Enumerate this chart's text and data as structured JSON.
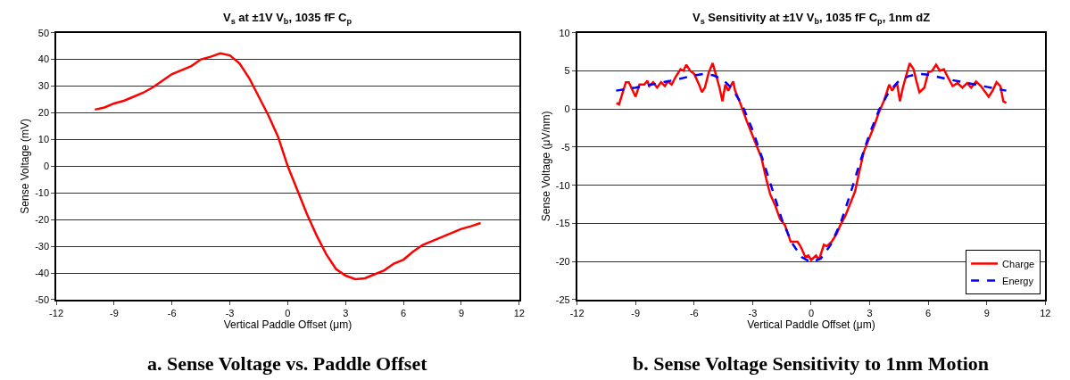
{
  "chart_data": [
    {
      "type": "line",
      "title": "V$_{s}$ at ±1V V$_{b}$, 1035 fF C$_{p}$",
      "xlabel": "Vertical Paddle Offset (μm)",
      "ylabel": "Sense Voltage (mV)",
      "annotations": [
        "a. Sense Voltage vs. Paddle Offset"
      ],
      "xlim": [
        -12,
        12
      ],
      "xticks": [
        -12,
        -9,
        -6,
        -3,
        0,
        3,
        6,
        9,
        12
      ],
      "ylim": [
        -50,
        50
      ],
      "yticks": [
        -50,
        -40,
        -30,
        -20,
        -10,
        0,
        10,
        20,
        30,
        40,
        50
      ],
      "grid": "y",
      "legend": false,
      "series": [
        {
          "color": "#ff0000",
          "line_style": "solid",
          "x": [
            -10,
            -9.5,
            -9,
            -8.5,
            -8,
            -7.5,
            -7,
            -6.5,
            -6,
            -5.5,
            -5,
            -4.5,
            -4,
            -3.5,
            -3,
            -2.5,
            -2,
            -1.5,
            -1,
            -0.5,
            0,
            0.5,
            1,
            1.5,
            2,
            2.5,
            3,
            3.5,
            4,
            4.5,
            5,
            5.5,
            6,
            6.5,
            7,
            7.5,
            8,
            8.5,
            9,
            9.5,
            10
          ],
          "values": [
            21.2,
            22,
            23.5,
            24.5,
            26,
            27.5,
            29.5,
            32,
            34.5,
            36,
            37.5,
            40,
            41,
            42.3,
            41.5,
            38.5,
            33,
            26,
            19,
            11,
            0,
            -9,
            -18,
            -26,
            -33,
            -38.5,
            -41,
            -42.3,
            -42,
            -40.5,
            -39,
            -36.5,
            -35,
            -32,
            -29.5,
            -28,
            -26.5,
            -25,
            -23.5,
            -22.5,
            -21.3
          ]
        }
      ]
    },
    {
      "type": "line",
      "title": "V$_{s}$ Sensitivity at ±1V V$_{b}$, 1035 fF C$_{p}$, 1nm dZ",
      "xlabel": "Vertical Paddle Offset (μm)",
      "ylabel": "Sense Voltage (μV/nm)",
      "annotations": [
        "b. Sense Voltage Sensitivity to 1nm Motion"
      ],
      "xlim": [
        -12,
        12
      ],
      "xticks": [
        -12,
        -9,
        -6,
        -3,
        0,
        3,
        6,
        9,
        12
      ],
      "ylim": [
        -25,
        10
      ],
      "yticks": [
        -25,
        -20,
        -15,
        -10,
        -5,
        0,
        5,
        10
      ],
      "grid": "y",
      "legend": "bottom right",
      "series": [
        {
          "name": "Charge",
          "color": "#ff0000",
          "line_style": "solid",
          "x": [
            -9.98,
            -9.85,
            -9.5,
            -9.35,
            -9,
            -8.8,
            -8.55,
            -8.4,
            -8.3,
            -8.1,
            -7.9,
            -7.7,
            -7.5,
            -7.35,
            -7.15,
            -6.95,
            -6.7,
            -6.55,
            -6.4,
            -6.2,
            -6,
            -5.75,
            -5.6,
            -5.45,
            -5.25,
            -5.05,
            -4.85,
            -4.7,
            -4.55,
            -4.4,
            -4.25,
            -4,
            -3.9,
            -3.7,
            -3.5,
            -3.3,
            -3.05,
            -2.8,
            -2.55,
            -2.3,
            -2.1,
            -1.85,
            -1.6,
            -1.35,
            -1.05,
            -0.7,
            -0.55,
            -0.3,
            -0.15,
            0,
            0.25,
            0.4,
            0.65,
            0.8,
            1.05,
            1.3,
            1.5,
            1.75,
            2,
            2.25,
            2.45,
            2.7,
            2.95,
            3.2,
            3.45,
            3.75,
            4,
            4.15,
            4.4,
            4.55,
            4.7,
            4.85,
            5.05,
            5.25,
            5.4,
            5.55,
            5.8,
            6,
            6.2,
            6.4,
            6.6,
            6.8,
            7,
            7.25,
            7.5,
            7.75,
            8,
            8.2,
            8.45,
            8.7,
            9.1,
            9.3,
            9.5,
            9.7,
            9.85,
            10
          ],
          "values": [
            0.8,
            0.6,
            3.5,
            3.5,
            1.6,
            3.2,
            3.2,
            3.7,
            3,
            3.5,
            2.8,
            3.5,
            3,
            3.6,
            3.2,
            4.2,
            5.2,
            5,
            5.8,
            5,
            4.6,
            3.2,
            2.2,
            2.8,
            4.8,
            6,
            4.2,
            2.8,
            1,
            3.2,
            2.4,
            3.6,
            2.4,
            1.2,
            -0.2,
            -1.6,
            -3.2,
            -4.8,
            -6.4,
            -9.2,
            -11.2,
            -12.6,
            -14.4,
            -15.2,
            -17.4,
            -17.4,
            -18,
            -19.4,
            -19.2,
            -19.8,
            -19.2,
            -19.8,
            -17.8,
            -18,
            -17.4,
            -16.4,
            -15.2,
            -14,
            -12.4,
            -10.8,
            -8.4,
            -5.6,
            -4,
            -2.4,
            -0.6,
            1.2,
            3.2,
            2.4,
            3.4,
            1,
            2.8,
            4.2,
            6,
            5.2,
            3.6,
            2.2,
            2.8,
            4.8,
            5,
            5.8,
            5,
            5.2,
            4.2,
            3,
            3.4,
            2.8,
            3.4,
            2.8,
            3.6,
            3,
            1.6,
            2.4,
            3.5,
            3,
            1,
            0.8
          ]
        },
        {
          "name": "Energy",
          "color": "#0000ff",
          "line_style": "dashed",
          "x": [
            -10,
            -9,
            -8,
            -7,
            -6,
            -5.5,
            -5,
            -4.5,
            -4,
            -3.5,
            -3,
            -2.5,
            -2,
            -1.5,
            -1,
            -0.5,
            0,
            0.5,
            1,
            1.5,
            2,
            2.5,
            3,
            3.5,
            4,
            4.5,
            5,
            5.5,
            6,
            7,
            8,
            9,
            10
          ],
          "values": [
            2.4,
            2.8,
            3.3,
            3.8,
            4.4,
            4.6,
            4.4,
            3.8,
            2.5,
            0.3,
            -2.8,
            -6.5,
            -10.5,
            -14.5,
            -17.5,
            -19.4,
            -20.1,
            -19.6,
            -17.8,
            -15,
            -11.2,
            -7,
            -3.2,
            0,
            2.3,
            3.7,
            4.3,
            4.6,
            4.5,
            3.9,
            3.4,
            2.9,
            2.4
          ]
        }
      ]
    }
  ]
}
